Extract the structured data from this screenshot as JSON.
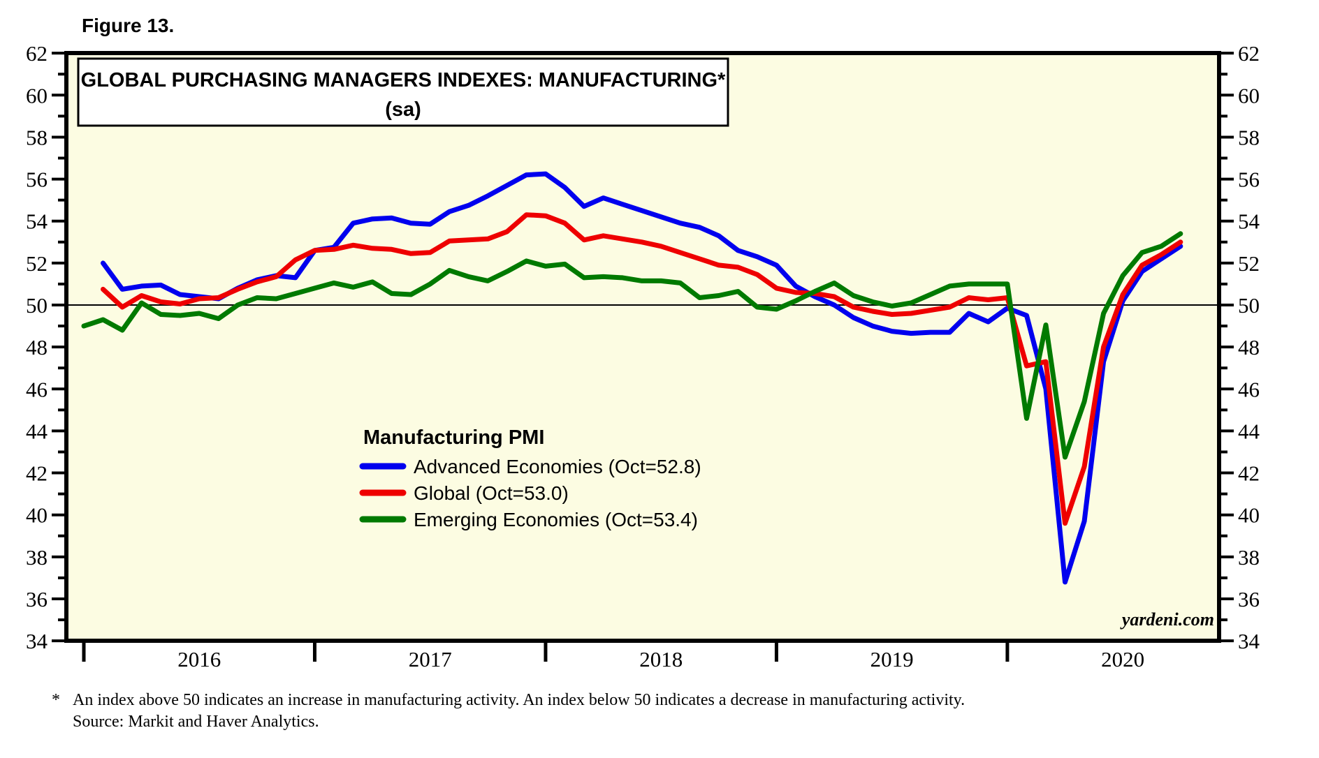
{
  "figure_label": "Figure 13.",
  "title_box": {
    "title": "GLOBAL PURCHASING MANAGERS INDEXES: MANUFACTURING*",
    "subtitle": "(sa)"
  },
  "watermark": "yardeni.com",
  "legend": {
    "title": "Manufacturing PMI",
    "entries": [
      {
        "label": "Advanced Economies (Oct=52.8)",
        "color": "#0000EE"
      },
      {
        "label": "Global (Oct=53.0)",
        "color": "#EE0000"
      },
      {
        "label": "Emerging Economies (Oct=53.4)",
        "color": "#007A00"
      }
    ]
  },
  "footnote": {
    "marker": "*",
    "line1": "An index above 50 indicates an increase in manufacturing activity. An index below 50 indicates a decrease in manufacturing activity.",
    "line2": "Source: Markit and Haver Analytics."
  },
  "colors": {
    "plot_background": "#FCFCE2",
    "frame": "#000000",
    "advanced": "#0000EE",
    "global": "#EE0000",
    "emerging": "#007A00"
  },
  "chart_data": {
    "type": "line",
    "frequency": "monthly",
    "x_start": "2016-01",
    "x_end": "2020-10",
    "years": [
      2016,
      2017,
      2018,
      2019,
      2020
    ],
    "ylim": [
      34,
      62
    ],
    "ytick_major_step": 2,
    "ytick_minor_step": 1,
    "ref_line": 50,
    "grid": "ref-line-only",
    "legend_position": "center-left inside plot",
    "series": [
      {
        "name": "Advanced Economies (Oct=52.8)",
        "color": "#0000EE",
        "start": "2016-02",
        "start_month_index": 1,
        "values": [
          52.0,
          50.75,
          50.9,
          50.95,
          50.5,
          50.4,
          50.3,
          50.8,
          51.2,
          51.4,
          51.3,
          52.6,
          52.75,
          53.9,
          54.1,
          54.15,
          53.9,
          53.85,
          54.45,
          54.75,
          55.2,
          55.7,
          56.2,
          56.25,
          55.6,
          54.7,
          55.1,
          54.8,
          54.5,
          54.2,
          53.9,
          53.7,
          53.3,
          52.6,
          52.3,
          51.9,
          50.9,
          50.4,
          50.0,
          49.4,
          49.0,
          48.75,
          48.65,
          48.7,
          48.7,
          49.6,
          49.2,
          49.85,
          49.5,
          46.0,
          36.8,
          39.7,
          47.3,
          50.2,
          51.6,
          52.2,
          52.8
        ]
      },
      {
        "name": "Global (Oct=53.0)",
        "color": "#EE0000",
        "start": "2016-02",
        "start_month_index": 1,
        "values": [
          50.75,
          49.9,
          50.45,
          50.15,
          50.05,
          50.3,
          50.35,
          50.75,
          51.1,
          51.35,
          52.15,
          52.6,
          52.65,
          52.85,
          52.7,
          52.65,
          52.45,
          52.5,
          53.05,
          53.1,
          53.15,
          53.5,
          54.3,
          54.25,
          53.9,
          53.1,
          53.3,
          53.15,
          53.0,
          52.8,
          52.5,
          52.2,
          51.9,
          51.8,
          51.45,
          50.8,
          50.6,
          50.55,
          50.4,
          49.9,
          49.7,
          49.55,
          49.6,
          49.75,
          49.9,
          50.35,
          50.25,
          50.35,
          47.1,
          47.3,
          39.6,
          42.3,
          48.0,
          50.5,
          51.9,
          52.4,
          53.0
        ]
      },
      {
        "name": "Emerging Economies (Oct=53.4)",
        "color": "#007A00",
        "start": "2016-01",
        "start_month_index": 0,
        "values": [
          49.0,
          49.3,
          48.8,
          50.1,
          49.55,
          49.5,
          49.6,
          49.35,
          50.0,
          50.35,
          50.3,
          50.55,
          50.8,
          51.05,
          50.85,
          51.1,
          50.55,
          50.5,
          51.0,
          51.65,
          51.35,
          51.15,
          51.6,
          52.1,
          51.85,
          51.95,
          51.3,
          51.35,
          51.3,
          51.15,
          51.15,
          51.05,
          50.35,
          50.45,
          50.65,
          49.9,
          49.8,
          50.2,
          50.65,
          51.05,
          50.45,
          50.15,
          49.95,
          50.1,
          50.5,
          50.9,
          51.0,
          51.0,
          51.0,
          44.6,
          49.05,
          42.75,
          45.4,
          49.6,
          51.4,
          52.5,
          52.8,
          53.4
        ]
      }
    ]
  }
}
